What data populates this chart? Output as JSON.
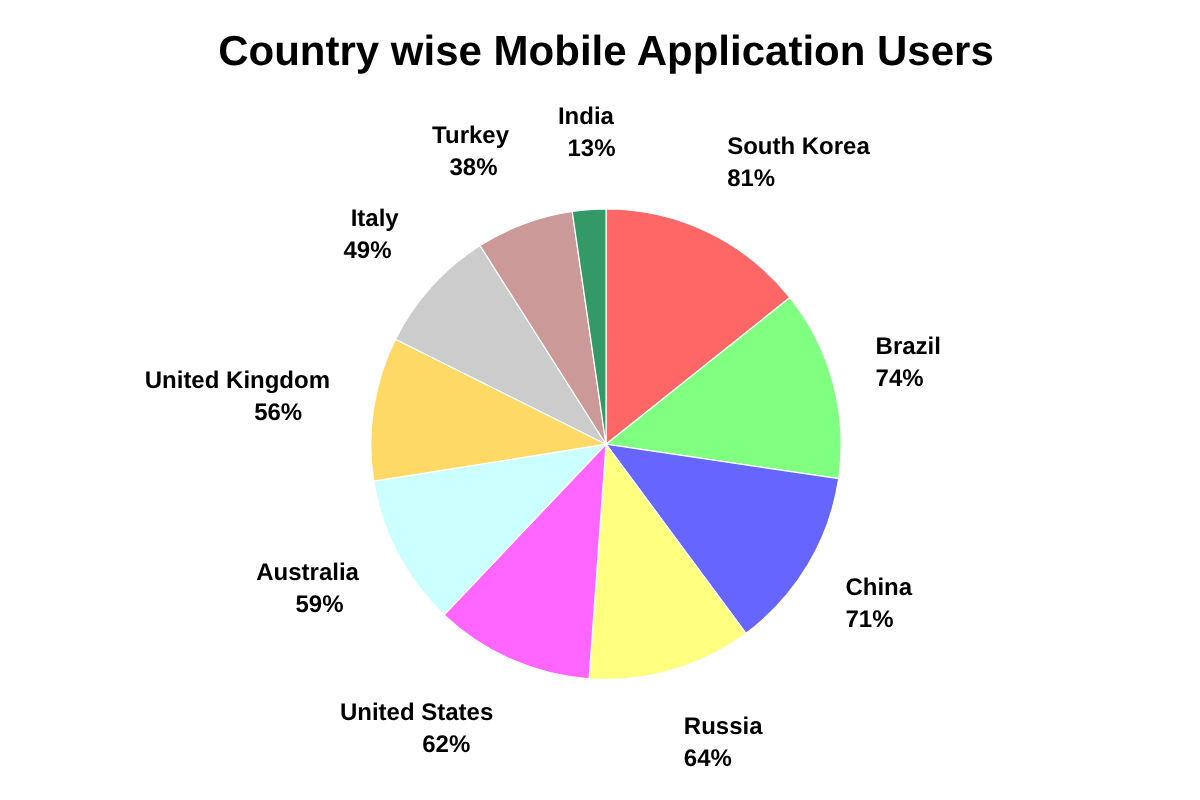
{
  "chart_data": {
    "type": "pie",
    "title": "Country wise Mobile Application Users",
    "categories": [
      "South Korea",
      "Brazil",
      "China",
      "Russia",
      "United States",
      "Australia",
      "United Kingdom",
      "Italy",
      "Turkey",
      "India"
    ],
    "values": [
      81,
      74,
      71,
      64,
      62,
      59,
      56,
      49,
      38,
      13
    ],
    "colors": [
      "#ff6666",
      "#80ff80",
      "#6666ff",
      "#ffff80",
      "#ff66ff",
      "#ccffff",
      "#ffd966",
      "#cccccc",
      "#cc9999",
      "#339966"
    ],
    "value_labels": [
      "81%",
      "74%",
      "71%",
      "64%",
      "62%",
      "59%",
      "56%",
      "49%",
      "38%",
      "13%"
    ]
  }
}
